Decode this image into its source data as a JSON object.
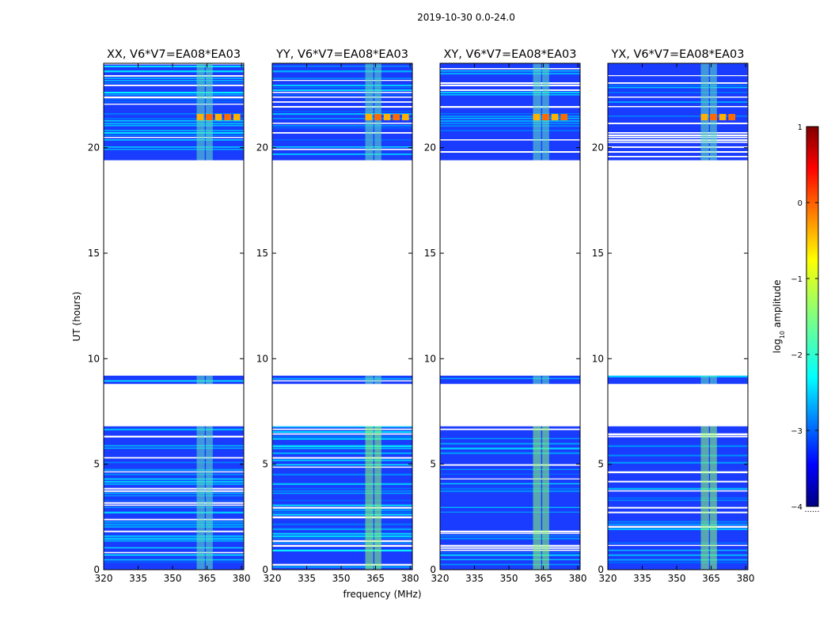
{
  "figure": {
    "suptitle": "2019-10-30 0.0-24.0"
  },
  "chart_data": {
    "type": "heatmap",
    "suptitle": "2019-10-30 0.0-24.0",
    "xlabel": "frequency (MHz)",
    "ylabel": "UT (hours)",
    "xlim": [
      320,
      381
    ],
    "ylim": [
      0,
      24
    ],
    "xticks": [
      320,
      335,
      350,
      365,
      380
    ],
    "yticks": [
      0,
      5,
      10,
      15,
      20
    ],
    "panels": [
      {
        "title": "XX, V6*V7=EA08*EA03",
        "pol": "XX"
      },
      {
        "title": "YY, V6*V7=EA08*EA03",
        "pol": "YY"
      },
      {
        "title": "XY, V6*V7=EA08*EA03",
        "pol": "XY"
      },
      {
        "title": "YX, V6*V7=EA08*EA03",
        "pol": "YX"
      }
    ],
    "data_bands_ut_hours": [
      [
        0.0,
        6.8
      ],
      [
        8.8,
        9.2
      ],
      [
        19.4,
        24.0
      ]
    ],
    "gap_bands_ut_hours": [
      [
        6.8,
        8.8
      ],
      [
        9.2,
        19.4
      ]
    ],
    "rfi_frequency_ranges_mhz": [
      [
        360.5,
        364.0
      ],
      [
        364.5,
        367.5
      ]
    ],
    "strong_rfi_ut_hours": [
      21.3,
      21.6
    ],
    "colorbar": {
      "label": "log10 amplitude",
      "label_base": "log",
      "label_sub": "10",
      "label_rest": " amplitude",
      "range": [
        -4,
        1
      ],
      "ticks": [
        1,
        0,
        -1,
        -2,
        -3,
        -4
      ],
      "tick_labels": [
        "1",
        "0",
        "−1",
        "−2",
        "−3",
        "−4"
      ],
      "colormap": "jet",
      "underline": "......"
    }
  }
}
